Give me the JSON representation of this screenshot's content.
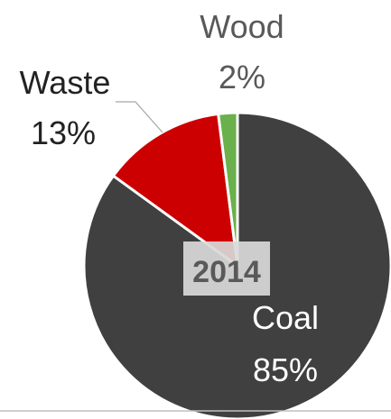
{
  "chart_data": {
    "type": "pie",
    "title": "",
    "center_label": "2014",
    "slices": [
      {
        "label": "Coal",
        "value": 85,
        "display": "85%",
        "color": "#404040",
        "text_color": "#ffffff"
      },
      {
        "label": "Waste",
        "value": 13,
        "display": "13%",
        "color": "#cc0000",
        "text_color": "#222222"
      },
      {
        "label": "Wood",
        "value": 2,
        "display": "2%",
        "color": "#6ab04c",
        "text_color": "#595959"
      }
    ],
    "start_angle_deg": 0,
    "direction": "clockwise",
    "legend": "none",
    "colors": {
      "slice_border": "#ffffff",
      "center_box": "#d9d9d9",
      "center_text": "#595959",
      "leader_line": "#a6a6a6",
      "baseline": "#bfbfbf"
    }
  }
}
